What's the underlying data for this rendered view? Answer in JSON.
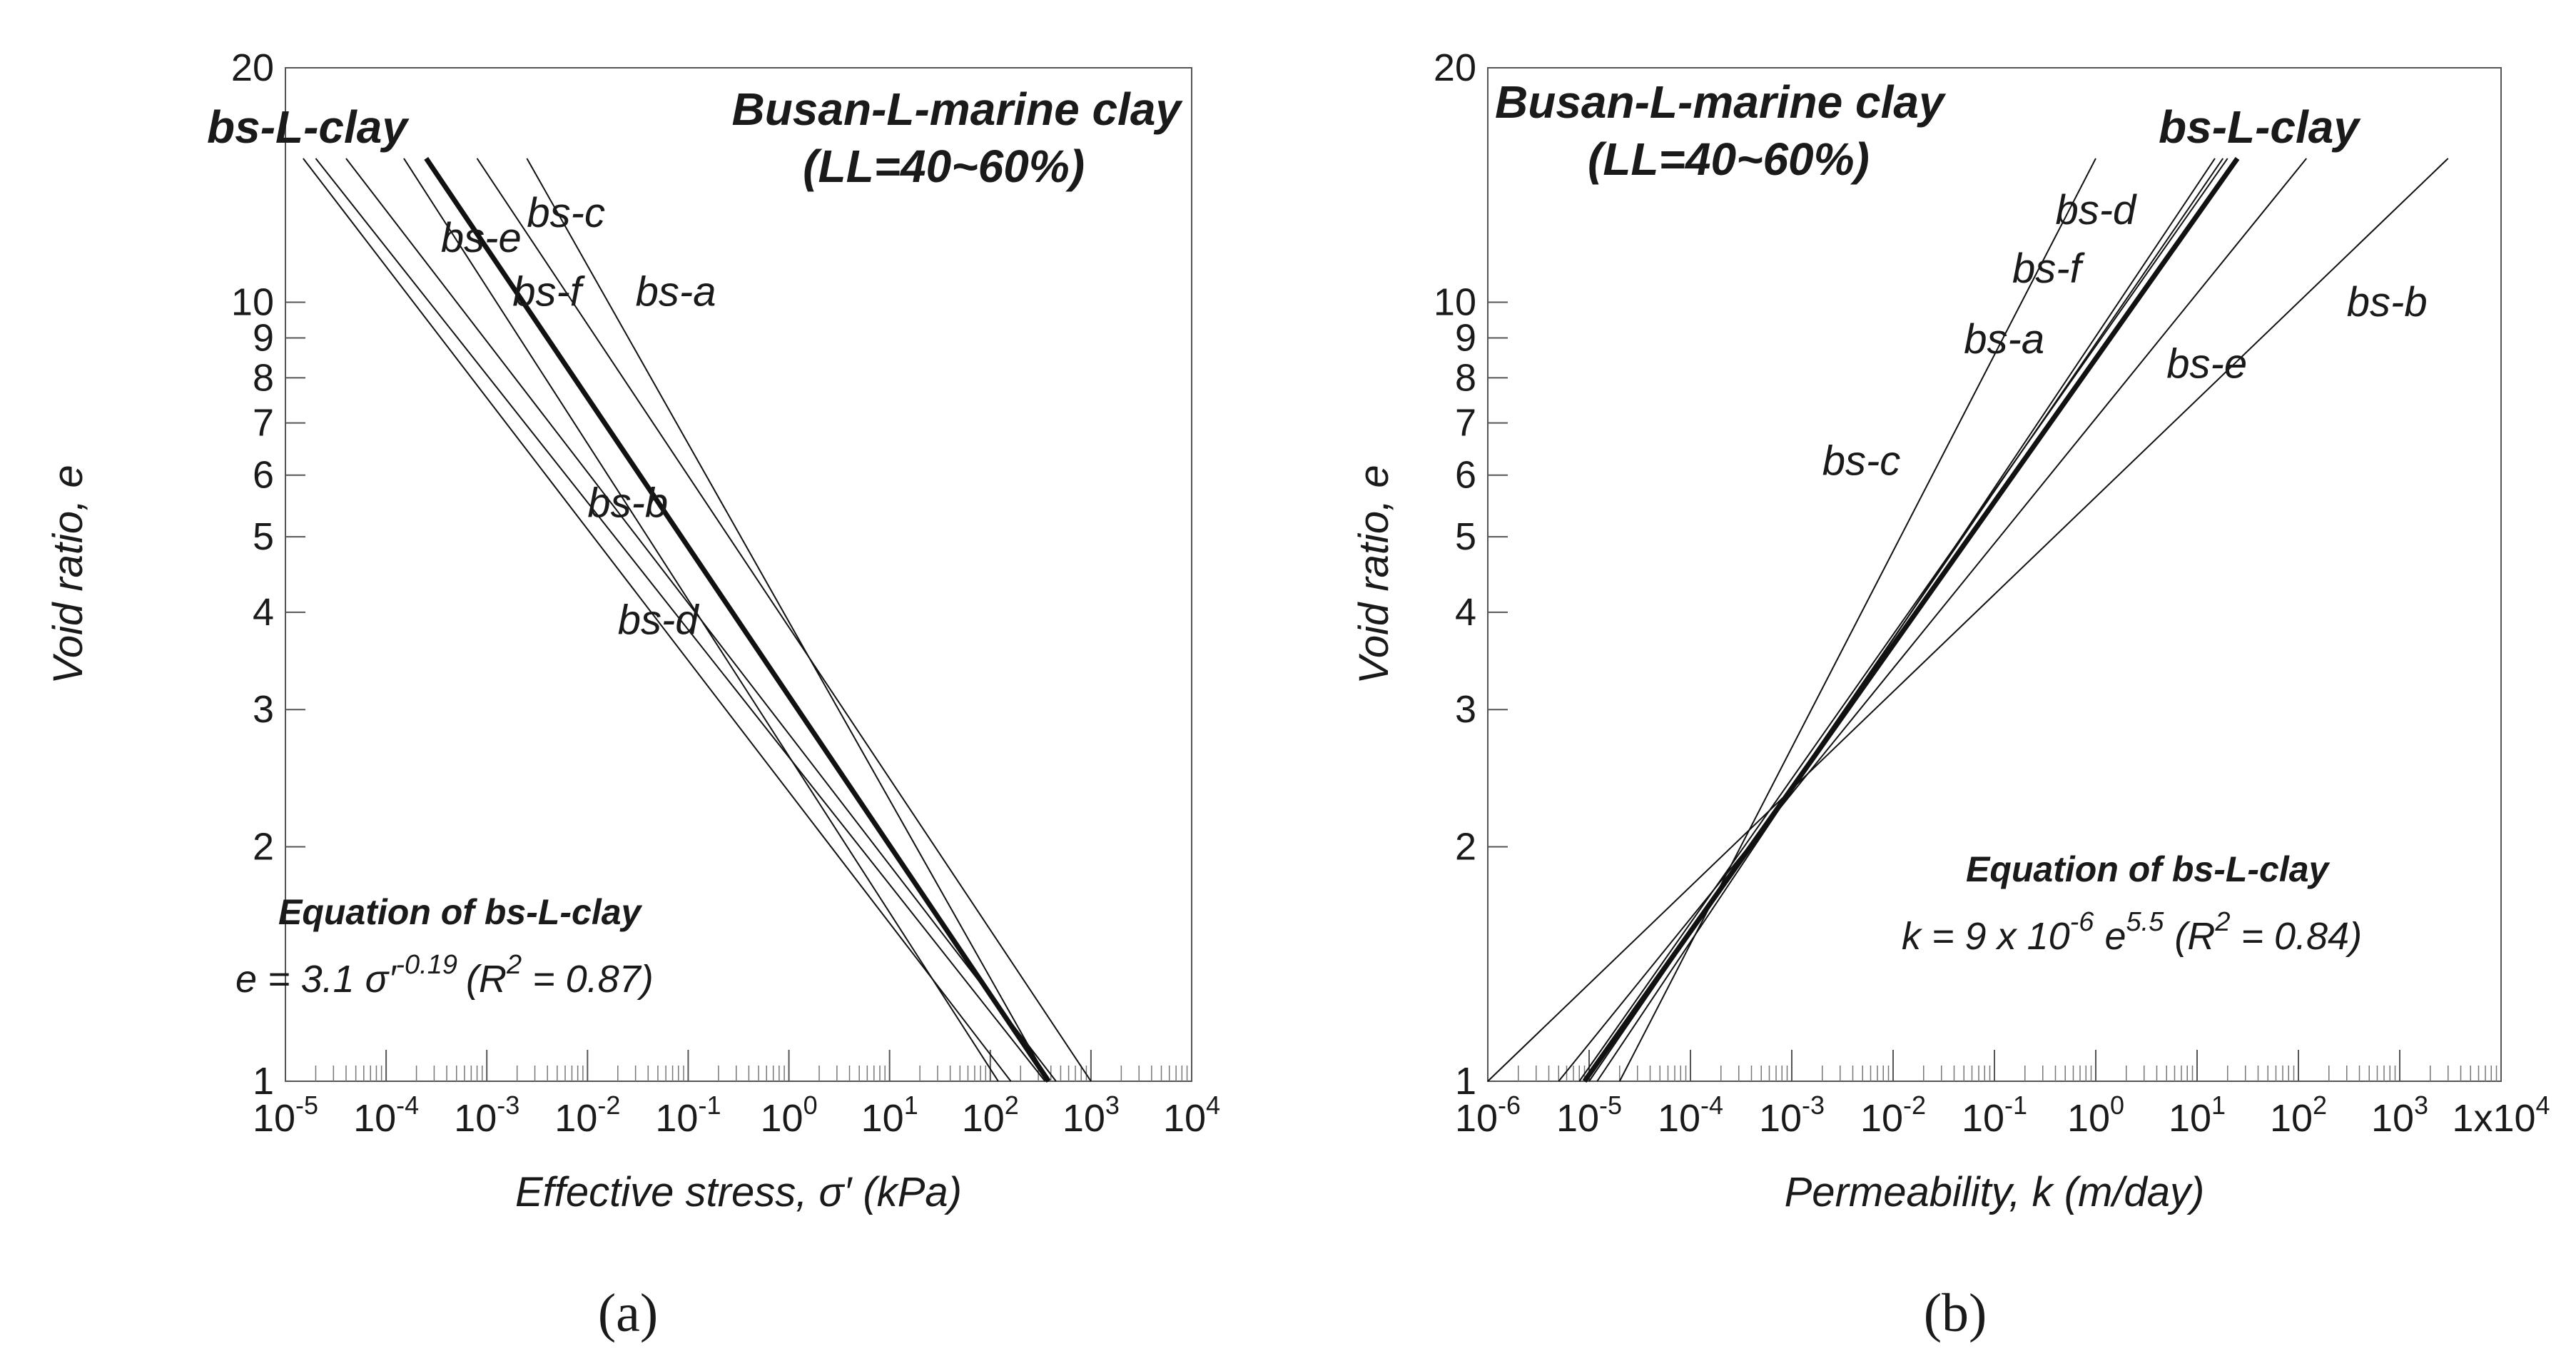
{
  "chart_data": [
    {
      "type": "line",
      "panel": "(a)",
      "title": "Busan-L-marine clay",
      "subtitle": "(LL=40~60%)",
      "xlabel": "Effective stress, σ′ (kPa)",
      "ylabel": "Void ratio, e",
      "xscale": "log",
      "yscale": "log",
      "xlim": [
        1e-05,
        10000
      ],
      "ylim": [
        1,
        20
      ],
      "x_tick_labels": [
        "10-5",
        "10-4",
        "10-3",
        "10-2",
        "10-1",
        "100",
        "101",
        "102",
        "103",
        "104"
      ],
      "y_tick_values": [
        1,
        2,
        3,
        4,
        5,
        6,
        7,
        8,
        9,
        10,
        20
      ],
      "y_tick_labels": [
        "1",
        "2",
        "3",
        "4",
        "5",
        "6",
        "7",
        "8",
        "9",
        "10",
        "20"
      ],
      "series": [
        {
          "name": "bs-L-clay",
          "bold": true,
          "points": [
            [
              0.00025,
              15.3
            ],
            [
              380,
              1
            ]
          ]
        },
        {
          "name": "bs-a",
          "points": [
            [
              0.0025,
              15.3
            ],
            [
              380,
              1
            ]
          ]
        },
        {
          "name": "bs-b",
          "points": [
            [
              0.00015,
              15.3
            ],
            [
              120,
              1
            ]
          ]
        },
        {
          "name": "bs-c",
          "points": [
            [
              0.0008,
              15.3
            ],
            [
              1000,
              1
            ]
          ]
        },
        {
          "name": "bs-d",
          "points": [
            [
              1.5e-05,
              15.3
            ],
            [
              160,
              1
            ]
          ]
        },
        {
          "name": "bs-e",
          "points": [
            [
              2e-05,
              15.3
            ],
            [
              350,
              1
            ]
          ]
        },
        {
          "name": "bs-f",
          "points": [
            [
              4e-05,
              15.3
            ],
            [
              450,
              1
            ]
          ]
        }
      ],
      "annotations": {
        "main_series": "bs-L-clay",
        "series_labels": [
          {
            "text": "bs-c",
            "x": 0.0025,
            "y": 12.5
          },
          {
            "text": "bs-e",
            "x": 0.00035,
            "y": 11.6
          },
          {
            "text": "bs-f",
            "x": 0.0018,
            "y": 9.9
          },
          {
            "text": "bs-a",
            "x": 0.03,
            "y": 9.9
          },
          {
            "text": "bs-b",
            "x": 0.01,
            "y": 5.3
          },
          {
            "text": "bs-d",
            "x": 0.02,
            "y": 3.75
          }
        ],
        "equation_title": "Equation of bs-L-clay",
        "equation": "e = 3.1 σ′",
        "equation_exponent": "-0.19",
        "equation_fit": "(R",
        "equation_fit_power": "2",
        "equation_fit_value": " = 0.87)"
      }
    },
    {
      "type": "line",
      "panel": "(b)",
      "title": "Busan-L-marine clay",
      "subtitle": "(LL=40~60%)",
      "xlabel": "Permeability, k (m/day)",
      "ylabel": "Void ratio, e",
      "xscale": "log",
      "yscale": "log",
      "xlim": [
        1e-06,
        10000
      ],
      "ylim": [
        1,
        20
      ],
      "x_tick_labels": [
        "10-6",
        "10-5",
        "10-4",
        "10-3",
        "10-2",
        "10-1",
        "100",
        "101",
        "102",
        "103",
        "1x104"
      ],
      "y_tick_values": [
        1,
        2,
        3,
        4,
        5,
        6,
        7,
        8,
        9,
        10,
        20
      ],
      "y_tick_labels": [
        "1",
        "2",
        "3",
        "4",
        "5",
        "6",
        "7",
        "8",
        "9",
        "10",
        "20"
      ],
      "series": [
        {
          "name": "bs-L-clay",
          "bold": true,
          "points": [
            [
              9e-06,
              1
            ],
            [
              25,
              15.3
            ]
          ]
        },
        {
          "name": "bs-a",
          "points": [
            [
              8e-06,
              1
            ],
            [
              20,
              15.3
            ]
          ]
        },
        {
          "name": "bs-b",
          "points": [
            [
              1e-06,
              1
            ],
            [
              3000,
              15.3
            ]
          ]
        },
        {
          "name": "bs-c",
          "points": [
            [
              2e-05,
              1
            ],
            [
              1,
              15.3
            ]
          ]
        },
        {
          "name": "bs-d",
          "points": [
            [
              1.2e-05,
              1
            ],
            [
              15,
              15.3
            ]
          ]
        },
        {
          "name": "bs-e",
          "points": [
            [
              5e-06,
              1
            ],
            [
              120,
              15.3
            ]
          ]
        },
        {
          "name": "bs-f",
          "points": [
            [
              1e-05,
              1
            ],
            [
              18,
              15.3
            ]
          ]
        }
      ],
      "annotations": {
        "main_series": "bs-L-clay",
        "series_labels": [
          {
            "text": "bs-d",
            "x": 0.4,
            "y": 12.6
          },
          {
            "text": "bs-f",
            "x": 0.15,
            "y": 10.6
          },
          {
            "text": "bs-a",
            "x": 0.05,
            "y": 8.6
          },
          {
            "text": "bs-e",
            "x": 5,
            "y": 8.0
          },
          {
            "text": "bs-b",
            "x": 300,
            "y": 9.6
          },
          {
            "text": "bs-c",
            "x": 0.002,
            "y": 6.0
          }
        ],
        "equation_title": "Equation of bs-L-clay",
        "equation": "k = 9 x 10",
        "equation_exponent": "-6",
        "equation_mid": " e",
        "equation_exponent2": "5.5",
        "equation_fit": " (R",
        "equation_fit_power": "2",
        "equation_fit_value": " = 0.84)"
      }
    }
  ]
}
